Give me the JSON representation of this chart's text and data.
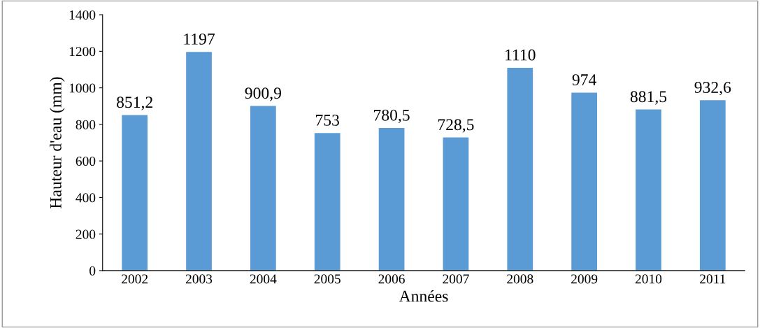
{
  "chart_data": {
    "type": "bar",
    "xlabel": "Années",
    "ylabel": "Hauteur d'eau (mm)",
    "categories": [
      "2002",
      "2003",
      "2004",
      "2005",
      "2006",
      "2007",
      "2008",
      "2009",
      "2010",
      "2011"
    ],
    "values": [
      851.2,
      1197,
      900.9,
      753,
      780.5,
      728.5,
      1110,
      974,
      881.5,
      932.6
    ],
    "value_labels": [
      "851,2",
      "1197",
      "900,9",
      "753",
      "780,5",
      "728,5",
      "1110",
      "974",
      "881,5",
      "932,6"
    ],
    "color": "#5b9bd5",
    "ylim": [
      0,
      1400
    ],
    "yticks": [
      0,
      200,
      400,
      600,
      800,
      1000,
      1200,
      1400
    ],
    "grid": false,
    "legend": false
  }
}
